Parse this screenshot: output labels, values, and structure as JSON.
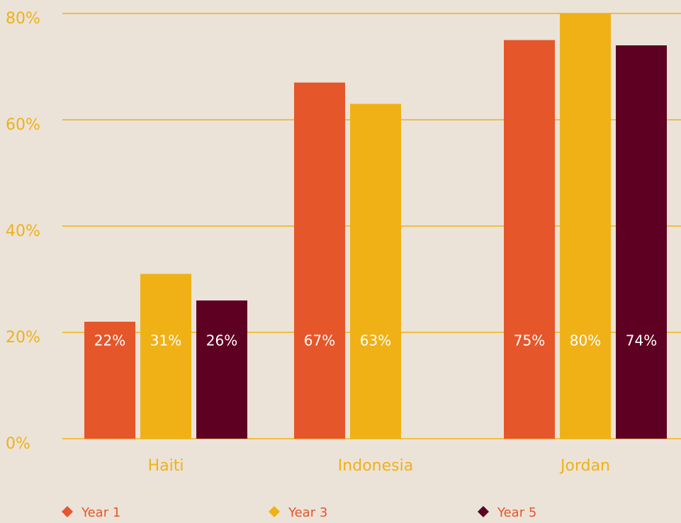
{
  "chart_data": {
    "type": "bar",
    "categories": [
      "Haiti",
      "Indonesia",
      "Jordan"
    ],
    "series": [
      {
        "name": "Year 1",
        "color": "#e5562a",
        "values": [
          22,
          67,
          75
        ],
        "value_labels": [
          "22%",
          "67%",
          "75%"
        ]
      },
      {
        "name": "Year 3",
        "color": "#f0b116",
        "values": [
          31,
          63,
          80
        ],
        "value_labels": [
          "31%",
          "63%",
          "80%"
        ]
      },
      {
        "name": "Year 5",
        "color": "#5e0022",
        "values": [
          26,
          null,
          74
        ],
        "value_labels": [
          "26%",
          null,
          "74%"
        ]
      }
    ],
    "ylim": [
      0,
      80
    ],
    "yticks": [
      {
        "value": 0,
        "label": "0%"
      },
      {
        "value": 20,
        "label": "20%"
      },
      {
        "value": 40,
        "label": "40%"
      },
      {
        "value": 60,
        "label": "60%"
      },
      {
        "value": 80,
        "label": "80%"
      }
    ],
    "grid": true,
    "grid_color": "#f0b116",
    "legend": "bottom"
  }
}
